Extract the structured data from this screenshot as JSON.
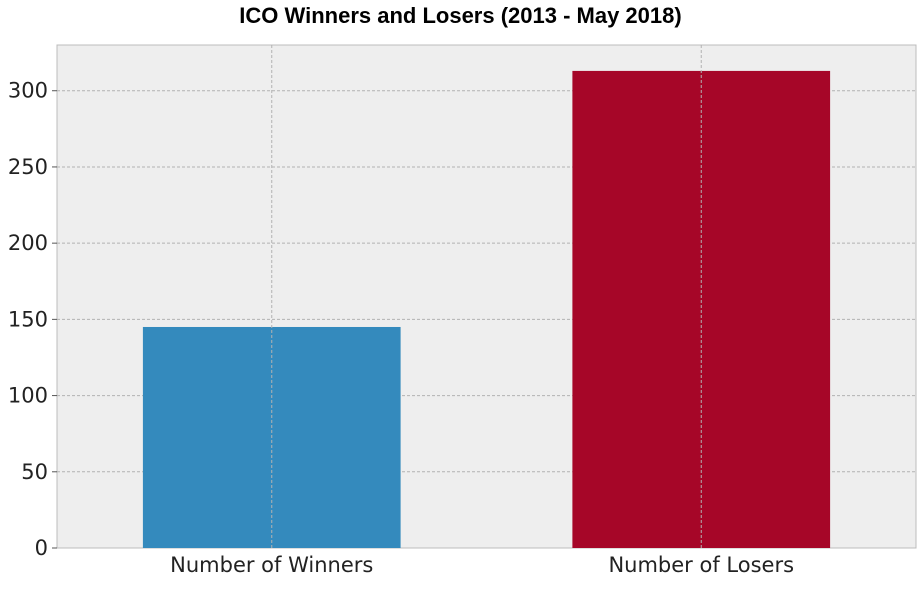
{
  "chart_data": {
    "type": "bar",
    "title": "ICO Winners and Losers (2013 - May 2018)",
    "xlabel": "",
    "ylabel": "",
    "categories": [
      "Number of Winners",
      "Number of Losers"
    ],
    "values": [
      145,
      313
    ],
    "colors": [
      "#348ABD",
      "#A60628"
    ],
    "ylim": [
      0,
      330
    ],
    "yticks": [
      0,
      50,
      100,
      150,
      200,
      250,
      300
    ],
    "grid": true,
    "legend": "none"
  }
}
